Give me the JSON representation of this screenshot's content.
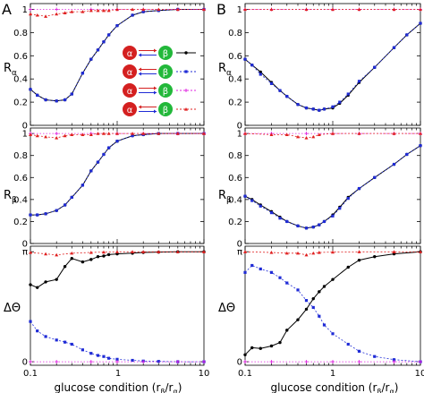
{
  "figure": {
    "xlabel": "glucose condition (rβ/rα)",
    "xlabel_main": "glucose condition (r",
    "xlabel_sub1": "β",
    "xlabel_mid": "/r",
    "xlabel_sub2": "α",
    "xlabel_end": ")",
    "xticks": [
      "0.1",
      "1",
      "10"
    ],
    "xticks_right": [
      "0.1",
      "1",
      "10"
    ],
    "colors": {
      "black": "#000000",
      "blue": "#1f2bd6",
      "pink": "#e020e0",
      "red": "#e02020"
    }
  },
  "panels": [
    {
      "letter": "A"
    },
    {
      "letter": "B"
    }
  ],
  "rows": [
    {
      "ylabel_main": "R",
      "ylabel_sub": "α",
      "yticks": [
        "0",
        "0.2",
        "0.4",
        "0.6",
        "0.8",
        "1"
      ]
    },
    {
      "ylabel_main": "R",
      "ylabel_sub": "β",
      "yticks": [
        "0",
        "0.2",
        "0.4",
        "0.6",
        "0.8",
        "1"
      ]
    },
    {
      "ylabel_main": "ΔΘ",
      "ylabel_sub": "",
      "yticks": [
        "0",
        "π"
      ]
    }
  ],
  "legend": {
    "entries": [
      {
        "from": "α",
        "to": "β",
        "color": "#000000",
        "marker": "circle"
      },
      {
        "from": "α",
        "to": "β",
        "color": "#1f2bd6",
        "marker": "square"
      },
      {
        "from": "α",
        "to": "β",
        "color": "#e020e0",
        "marker": "star"
      },
      {
        "from": "α",
        "to": "β",
        "color": "#e02020",
        "marker": "triangle"
      }
    ]
  },
  "chart_data": [
    {
      "type": "line",
      "panel": "A",
      "row": "Rα",
      "xscale": "log",
      "xlim": [
        0.1,
        10
      ],
      "ylim": [
        0,
        1.05
      ],
      "series": [
        {
          "color": "#000000",
          "x": [
            0.1,
            0.12,
            0.15,
            0.2,
            0.25,
            0.3,
            0.4,
            0.5,
            0.6,
            0.7,
            0.8,
            1,
            1.5,
            2,
            3,
            5,
            10
          ],
          "y": [
            0.31,
            0.26,
            0.22,
            0.21,
            0.22,
            0.27,
            0.45,
            0.57,
            0.65,
            0.72,
            0.78,
            0.86,
            0.95,
            0.98,
            0.99,
            1.0,
            1.0
          ]
        },
        {
          "color": "#1f2bd6",
          "x": [
            0.1,
            0.12,
            0.15,
            0.2,
            0.25,
            0.3,
            0.4,
            0.5,
            0.6,
            0.7,
            0.8,
            1,
            1.5,
            2,
            3,
            5,
            10
          ],
          "y": [
            0.31,
            0.26,
            0.22,
            0.21,
            0.22,
            0.27,
            0.45,
            0.57,
            0.65,
            0.72,
            0.78,
            0.86,
            0.95,
            0.98,
            0.99,
            1.0,
            1.0
          ]
        },
        {
          "color": "#e020e0",
          "x": [
            0.1,
            0.2,
            0.5,
            1,
            2,
            5,
            10
          ],
          "y": [
            1.0,
            1.0,
            1.0,
            1.0,
            1.0,
            1.0,
            1.0
          ]
        },
        {
          "color": "#e02020",
          "x": [
            0.1,
            0.12,
            0.15,
            0.2,
            0.25,
            0.3,
            0.4,
            0.5,
            0.6,
            0.7,
            0.8,
            1,
            1.5,
            2,
            3,
            5,
            10
          ],
          "y": [
            0.96,
            0.95,
            0.94,
            0.96,
            0.97,
            0.98,
            0.98,
            0.99,
            0.99,
            0.99,
            0.99,
            1.0,
            1.0,
            1.0,
            1.0,
            1.0,
            1.0
          ]
        }
      ]
    },
    {
      "type": "line",
      "panel": "A",
      "row": "Rβ",
      "xscale": "log",
      "xlim": [
        0.1,
        10
      ],
      "ylim": [
        0,
        1.05
      ],
      "series": [
        {
          "color": "#000000",
          "x": [
            0.1,
            0.12,
            0.15,
            0.2,
            0.25,
            0.3,
            0.4,
            0.5,
            0.6,
            0.7,
            0.8,
            1,
            1.5,
            2,
            3,
            5,
            10
          ],
          "y": [
            0.26,
            0.26,
            0.27,
            0.3,
            0.35,
            0.42,
            0.53,
            0.66,
            0.74,
            0.81,
            0.87,
            0.93,
            0.98,
            0.99,
            1.0,
            1.0,
            1.0
          ]
        },
        {
          "color": "#1f2bd6",
          "x": [
            0.1,
            0.12,
            0.15,
            0.2,
            0.25,
            0.3,
            0.4,
            0.5,
            0.6,
            0.7,
            0.8,
            1,
            1.5,
            2,
            3,
            5,
            10
          ],
          "y": [
            0.26,
            0.26,
            0.27,
            0.3,
            0.35,
            0.42,
            0.53,
            0.66,
            0.74,
            0.81,
            0.87,
            0.93,
            0.98,
            0.99,
            1.0,
            1.0,
            1.0
          ]
        },
        {
          "color": "#e020e0",
          "x": [
            0.1,
            0.2,
            0.5,
            1,
            2,
            5,
            10
          ],
          "y": [
            1.0,
            1.0,
            1.0,
            1.0,
            1.0,
            1.0,
            1.0
          ]
        },
        {
          "color": "#e02020",
          "x": [
            0.1,
            0.12,
            0.15,
            0.2,
            0.25,
            0.3,
            0.4,
            0.5,
            0.6,
            0.7,
            0.8,
            1,
            1.5,
            2,
            3,
            5,
            10
          ],
          "y": [
            0.99,
            0.98,
            0.97,
            0.96,
            0.98,
            0.99,
            0.99,
            0.99,
            1.0,
            1.0,
            1.0,
            1.0,
            1.0,
            1.0,
            1.0,
            1.0,
            1.0
          ]
        }
      ]
    },
    {
      "type": "line",
      "panel": "A",
      "row": "ΔΘ",
      "xscale": "log",
      "xlim": [
        0.1,
        10
      ],
      "ylim": [
        -0.1,
        3.3
      ],
      "y_tick_values": [
        0,
        3.14159
      ],
      "series": [
        {
          "color": "#000000",
          "x": [
            0.1,
            0.12,
            0.15,
            0.2,
            0.25,
            0.3,
            0.4,
            0.5,
            0.6,
            0.7,
            0.8,
            1,
            1.5,
            2,
            3,
            5,
            10
          ],
          "y": [
            2.2,
            2.12,
            2.28,
            2.35,
            2.72,
            2.95,
            2.85,
            2.92,
            3.0,
            3.02,
            3.06,
            3.08,
            3.1,
            3.12,
            3.13,
            3.14,
            3.14
          ]
        },
        {
          "color": "#1f2bd6",
          "x": [
            0.1,
            0.12,
            0.15,
            0.2,
            0.25,
            0.3,
            0.4,
            0.5,
            0.6,
            0.7,
            0.8,
            1,
            1.5,
            2,
            3,
            5,
            10
          ],
          "y": [
            1.15,
            0.88,
            0.72,
            0.62,
            0.56,
            0.5,
            0.34,
            0.24,
            0.18,
            0.15,
            0.1,
            0.07,
            0.04,
            0.02,
            0.01,
            0.0,
            0.0
          ]
        },
        {
          "color": "#e020e0",
          "x": [
            0.1,
            0.2,
            0.5,
            1,
            2,
            5,
            10
          ],
          "y": [
            0.0,
            0.0,
            0.0,
            0.0,
            0.0,
            0.0,
            0.0
          ]
        },
        {
          "color": "#e02020",
          "x": [
            0.1,
            0.15,
            0.2,
            0.3,
            0.5,
            0.7,
            1,
            1.5,
            2,
            3,
            5,
            10
          ],
          "y": [
            3.12,
            3.08,
            3.05,
            3.1,
            3.12,
            3.13,
            3.14,
            3.14,
            3.14,
            3.14,
            3.14,
            3.14
          ]
        }
      ]
    },
    {
      "type": "line",
      "panel": "B",
      "row": "Rα",
      "xscale": "log",
      "xlim": [
        0.1,
        10
      ],
      "ylim": [
        0,
        1.05
      ],
      "series": [
        {
          "color": "#000000",
          "x": [
            0.1,
            0.12,
            0.15,
            0.2,
            0.25,
            0.3,
            0.4,
            0.5,
            0.6,
            0.7,
            0.8,
            1,
            1.2,
            1.5,
            2,
            3,
            5,
            7,
            10
          ],
          "y": [
            0.57,
            0.52,
            0.46,
            0.37,
            0.3,
            0.25,
            0.18,
            0.15,
            0.14,
            0.13,
            0.14,
            0.15,
            0.19,
            0.26,
            0.37,
            0.5,
            0.67,
            0.78,
            0.88
          ]
        },
        {
          "color": "#1f2bd6",
          "x": [
            0.1,
            0.12,
            0.15,
            0.2,
            0.25,
            0.3,
            0.4,
            0.5,
            0.6,
            0.7,
            0.8,
            1,
            1.2,
            1.5,
            2,
            3,
            5,
            7,
            10
          ],
          "y": [
            0.57,
            0.52,
            0.44,
            0.36,
            0.3,
            0.25,
            0.18,
            0.15,
            0.14,
            0.13,
            0.14,
            0.16,
            0.2,
            0.27,
            0.38,
            0.5,
            0.67,
            0.78,
            0.88
          ]
        },
        {
          "color": "#e020e0",
          "x": [
            0.1,
            0.2,
            0.5,
            1,
            2,
            5,
            10
          ],
          "y": [
            1.0,
            1.0,
            1.0,
            1.0,
            1.0,
            1.0,
            1.0
          ]
        },
        {
          "color": "#e02020",
          "x": [
            0.1,
            0.2,
            0.5,
            1,
            2,
            5,
            10
          ],
          "y": [
            1.0,
            1.0,
            1.0,
            1.0,
            1.0,
            1.0,
            1.0
          ]
        }
      ]
    },
    {
      "type": "line",
      "panel": "B",
      "row": "Rβ",
      "xscale": "log",
      "xlim": [
        0.1,
        10
      ],
      "ylim": [
        0,
        1.05
      ],
      "series": [
        {
          "color": "#000000",
          "x": [
            0.1,
            0.12,
            0.15,
            0.2,
            0.25,
            0.3,
            0.4,
            0.5,
            0.6,
            0.7,
            0.8,
            1,
            1.2,
            1.5,
            2,
            3,
            5,
            7,
            10
          ],
          "y": [
            0.43,
            0.4,
            0.35,
            0.29,
            0.24,
            0.2,
            0.16,
            0.14,
            0.15,
            0.17,
            0.2,
            0.26,
            0.33,
            0.42,
            0.5,
            0.6,
            0.72,
            0.81,
            0.89
          ]
        },
        {
          "color": "#1f2bd6",
          "x": [
            0.1,
            0.12,
            0.15,
            0.2,
            0.25,
            0.3,
            0.4,
            0.5,
            0.6,
            0.7,
            0.8,
            1,
            1.2,
            1.5,
            2,
            3,
            5,
            7,
            10
          ],
          "y": [
            0.43,
            0.39,
            0.34,
            0.28,
            0.23,
            0.2,
            0.16,
            0.14,
            0.15,
            0.17,
            0.2,
            0.25,
            0.32,
            0.41,
            0.5,
            0.6,
            0.72,
            0.81,
            0.89
          ]
        },
        {
          "color": "#e020e0",
          "x": [
            0.1,
            0.2,
            0.5,
            1,
            2,
            5,
            10
          ],
          "y": [
            1.0,
            1.0,
            1.0,
            1.0,
            1.0,
            1.0,
            1.0
          ]
        },
        {
          "color": "#e02020",
          "x": [
            0.1,
            0.2,
            0.3,
            0.4,
            0.5,
            0.6,
            0.7,
            1,
            2,
            5,
            10
          ],
          "y": [
            1.0,
            0.99,
            0.99,
            0.97,
            0.96,
            0.97,
            0.99,
            1.0,
            1.0,
            1.0,
            1.0
          ]
        }
      ]
    },
    {
      "type": "line",
      "panel": "B",
      "row": "ΔΘ",
      "xscale": "log",
      "xlim": [
        0.1,
        10
      ],
      "ylim": [
        -0.1,
        3.3
      ],
      "y_tick_values": [
        0,
        3.14159
      ],
      "series": [
        {
          "color": "#000000",
          "x": [
            0.1,
            0.12,
            0.15,
            0.2,
            0.25,
            0.3,
            0.4,
            0.5,
            0.6,
            0.7,
            0.8,
            1,
            1.5,
            2,
            3,
            5,
            10
          ],
          "y": [
            0.2,
            0.4,
            0.38,
            0.45,
            0.55,
            0.9,
            1.2,
            1.5,
            1.8,
            2.0,
            2.15,
            2.35,
            2.7,
            2.9,
            3.0,
            3.08,
            3.14
          ]
        },
        {
          "color": "#1f2bd6",
          "x": [
            0.1,
            0.12,
            0.15,
            0.2,
            0.25,
            0.3,
            0.4,
            0.5,
            0.6,
            0.7,
            0.8,
            1,
            1.5,
            2,
            3,
            5,
            10
          ],
          "y": [
            2.55,
            2.75,
            2.65,
            2.55,
            2.4,
            2.25,
            2.05,
            1.75,
            1.55,
            1.3,
            1.05,
            0.8,
            0.5,
            0.3,
            0.15,
            0.06,
            0.0
          ]
        },
        {
          "color": "#e020e0",
          "x": [
            0.1,
            0.2,
            0.5,
            1,
            2,
            5,
            10
          ],
          "y": [
            0.0,
            0.0,
            0.0,
            0.0,
            0.0,
            0.0,
            0.0
          ]
        },
        {
          "color": "#e02020",
          "x": [
            0.1,
            0.2,
            0.3,
            0.4,
            0.5,
            0.6,
            0.7,
            1,
            2,
            5,
            10
          ],
          "y": [
            3.14,
            3.12,
            3.1,
            3.1,
            3.05,
            3.1,
            3.12,
            3.13,
            3.14,
            3.14,
            3.14
          ]
        }
      ]
    }
  ]
}
